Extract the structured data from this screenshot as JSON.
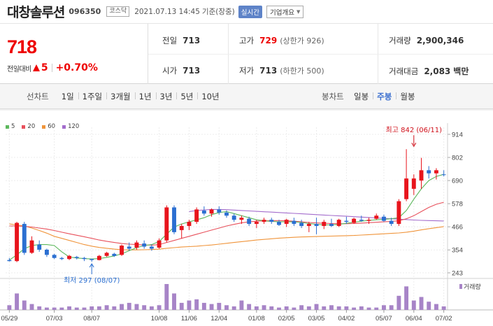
{
  "header": {
    "name": "대창솔루션",
    "code": "096350",
    "market": "코스닥",
    "datetime": "2021.07.13 14:45",
    "basis": "기준(장중)",
    "realtime": "실시간",
    "info_button": "기업개요"
  },
  "quote": {
    "price": "718",
    "change_label": "전일대비",
    "change": "5",
    "change_pct": "+0.70%",
    "prev_close_label": "전일",
    "prev_close": "713",
    "high_label": "고가",
    "high": "729",
    "upper_limit": "(상한가 926)",
    "volume_label": "거래량",
    "volume": "2,900,346",
    "open_label": "시가",
    "open": "713",
    "low_label": "저가",
    "low": "713",
    "lower_limit": "(하한가 500)",
    "amount_label": "거래대금",
    "amount": "2,083",
    "amount_unit": "백만"
  },
  "periods": {
    "line_label": "선차트",
    "line_items": [
      "1일",
      "1주일",
      "3개월",
      "1년",
      "3년",
      "5년",
      "10년"
    ],
    "candle_label": "봉차트",
    "candle_items": [
      "일봉",
      "주봉",
      "월봉"
    ],
    "active_candle": "주봉"
  },
  "colors": {
    "up": "#e8141c",
    "down": "#2b6fd1",
    "ma5": "#5cb85c",
    "ma20": "#e8505b",
    "ma60": "#f0943a",
    "ma120": "#a36ccc",
    "volume": "#a784c7"
  },
  "chart_data": {
    "type": "candlestick",
    "legend": [
      "5",
      "20",
      "60",
      "120"
    ],
    "y_ticks": [
      914,
      802,
      690,
      578,
      466,
      354,
      243
    ],
    "ylim": [
      243,
      914
    ],
    "x_ticks": [
      {
        "label": "05/29",
        "index": 0
      },
      {
        "label": "07/03",
        "index": 6
      },
      {
        "label": "08/07",
        "index": 11
      },
      {
        "label": "10/08",
        "index": 20
      },
      {
        "label": "11/06",
        "index": 24
      },
      {
        "label": "12/04",
        "index": 28
      },
      {
        "label": "01/08",
        "index": 33
      },
      {
        "label": "02/05",
        "index": 37
      },
      {
        "label": "03/05",
        "index": 41
      },
      {
        "label": "04/02",
        "index": 45
      },
      {
        "label": "05/07",
        "index": 50
      },
      {
        "label": "06/04",
        "index": 54
      },
      {
        "label": "07/02",
        "index": 58
      }
    ],
    "annotations": [
      {
        "text": "최고 842 (06/11)",
        "index": 54,
        "value": 842
      },
      {
        "text": "최저 297 (08/07)",
        "index": 11,
        "value": 297
      }
    ],
    "volume_label": "거래량",
    "candles": [
      [
        305,
        315,
        298,
        300
      ],
      [
        300,
        490,
        295,
        485
      ],
      [
        480,
        490,
        330,
        340
      ],
      [
        340,
        420,
        335,
        400
      ],
      [
        380,
        400,
        345,
        355
      ],
      [
        355,
        360,
        320,
        330
      ],
      [
        330,
        335,
        310,
        315
      ],
      [
        315,
        320,
        305,
        310
      ],
      [
        310,
        330,
        305,
        325
      ],
      [
        320,
        325,
        308,
        315
      ],
      [
        315,
        320,
        300,
        310
      ],
      [
        310,
        312,
        297,
        305
      ],
      [
        305,
        330,
        303,
        325
      ],
      [
        325,
        345,
        320,
        340
      ],
      [
        335,
        340,
        320,
        325
      ],
      [
        330,
        380,
        325,
        375
      ],
      [
        370,
        390,
        350,
        360
      ],
      [
        365,
        400,
        355,
        390
      ],
      [
        385,
        400,
        360,
        370
      ],
      [
        370,
        380,
        350,
        360
      ],
      [
        365,
        410,
        360,
        400
      ],
      [
        400,
        570,
        390,
        560
      ],
      [
        560,
        570,
        430,
        440
      ],
      [
        450,
        480,
        410,
        470
      ],
      [
        470,
        500,
        450,
        490
      ],
      [
        490,
        560,
        480,
        550
      ],
      [
        545,
        565,
        520,
        530
      ],
      [
        530,
        555,
        515,
        550
      ],
      [
        550,
        565,
        525,
        535
      ],
      [
        535,
        545,
        510,
        520
      ],
      [
        520,
        530,
        490,
        500
      ],
      [
        500,
        520,
        480,
        510
      ],
      [
        505,
        515,
        470,
        480
      ],
      [
        480,
        500,
        460,
        490
      ],
      [
        490,
        510,
        480,
        500
      ],
      [
        500,
        510,
        480,
        490
      ],
      [
        490,
        500,
        470,
        475
      ],
      [
        480,
        505,
        465,
        500
      ],
      [
        495,
        510,
        470,
        480
      ],
      [
        485,
        500,
        460,
        470
      ],
      [
        470,
        490,
        440,
        480
      ],
      [
        480,
        510,
        430,
        470
      ],
      [
        470,
        500,
        455,
        490
      ],
      [
        480,
        505,
        465,
        470
      ],
      [
        470,
        505,
        465,
        500
      ],
      [
        495,
        515,
        480,
        490
      ],
      [
        485,
        510,
        480,
        505
      ],
      [
        500,
        520,
        490,
        495
      ],
      [
        495,
        510,
        480,
        500
      ],
      [
        505,
        530,
        500,
        520
      ],
      [
        515,
        525,
        490,
        495
      ],
      [
        495,
        510,
        470,
        480
      ],
      [
        480,
        600,
        470,
        590
      ],
      [
        600,
        842,
        590,
        700
      ],
      [
        650,
        720,
        620,
        700
      ],
      [
        690,
        800,
        650,
        740
      ],
      [
        740,
        760,
        700,
        725
      ],
      [
        725,
        750,
        695,
        740
      ],
      [
        720,
        740,
        710,
        718
      ]
    ],
    "ma5": [
      305,
      330,
      360,
      375,
      380,
      380,
      375,
      345,
      320,
      315,
      312,
      310,
      312,
      318,
      325,
      335,
      350,
      365,
      375,
      380,
      395,
      430,
      465,
      480,
      490,
      500,
      510,
      525,
      535,
      540,
      530,
      520,
      510,
      500,
      495,
      492,
      490,
      490,
      490,
      487,
      482,
      478,
      475,
      475,
      478,
      483,
      488,
      493,
      497,
      500,
      502,
      505,
      510,
      545,
      600,
      650,
      690,
      710,
      720
    ],
    "ma20": [
      470,
      470,
      468,
      465,
      460,
      455,
      448,
      440,
      432,
      425,
      418,
      410,
      402,
      396,
      390,
      385,
      382,
      380,
      378,
      377,
      380,
      390,
      400,
      410,
      420,
      430,
      440,
      450,
      460,
      470,
      478,
      485,
      490,
      493,
      495,
      496,
      496,
      495,
      493,
      490,
      487,
      485,
      483,
      482,
      481,
      481,
      482,
      484,
      486,
      488,
      490,
      492,
      495,
      505,
      520,
      540,
      560,
      575,
      585
    ],
    "ma60": [
      480,
      475,
      470,
      460,
      448,
      435,
      420,
      410,
      400,
      390,
      380,
      372,
      366,
      362,
      358,
      355,
      354,
      354,
      355,
      356,
      358,
      362,
      365,
      368,
      370,
      372,
      375,
      378,
      382,
      386,
      390,
      394,
      398,
      402,
      405,
      408,
      411,
      413,
      415,
      417,
      418,
      419,
      420,
      421,
      422,
      423,
      424,
      426,
      428,
      430,
      432,
      434,
      436,
      440,
      445,
      451,
      457,
      462,
      467
    ],
    "ma120": [
      null,
      null,
      null,
      null,
      null,
      null,
      null,
      null,
      null,
      null,
      null,
      null,
      null,
      null,
      null,
      null,
      null,
      null,
      null,
      null,
      null,
      null,
      null,
      null,
      540,
      545,
      548,
      550,
      550,
      549,
      547,
      545,
      543,
      541,
      539,
      537,
      535,
      533,
      531,
      529,
      527,
      525,
      523,
      521,
      519,
      517,
      515,
      513,
      511,
      509,
      507,
      505,
      503,
      501,
      499,
      497,
      496,
      495,
      494
    ],
    "volume": [
      4,
      14,
      8,
      5,
      3,
      2,
      2,
      2,
      3,
      2,
      2,
      3,
      3,
      4,
      3,
      5,
      6,
      5,
      4,
      3,
      4,
      22,
      14,
      6,
      8,
      9,
      6,
      5,
      6,
      4,
      3,
      8,
      5,
      3,
      4,
      3,
      2,
      3,
      2,
      4,
      3,
      5,
      3,
      4,
      3,
      3,
      2,
      3,
      2,
      2,
      4,
      4,
      12,
      20,
      8,
      11,
      7,
      5,
      3
    ]
  }
}
